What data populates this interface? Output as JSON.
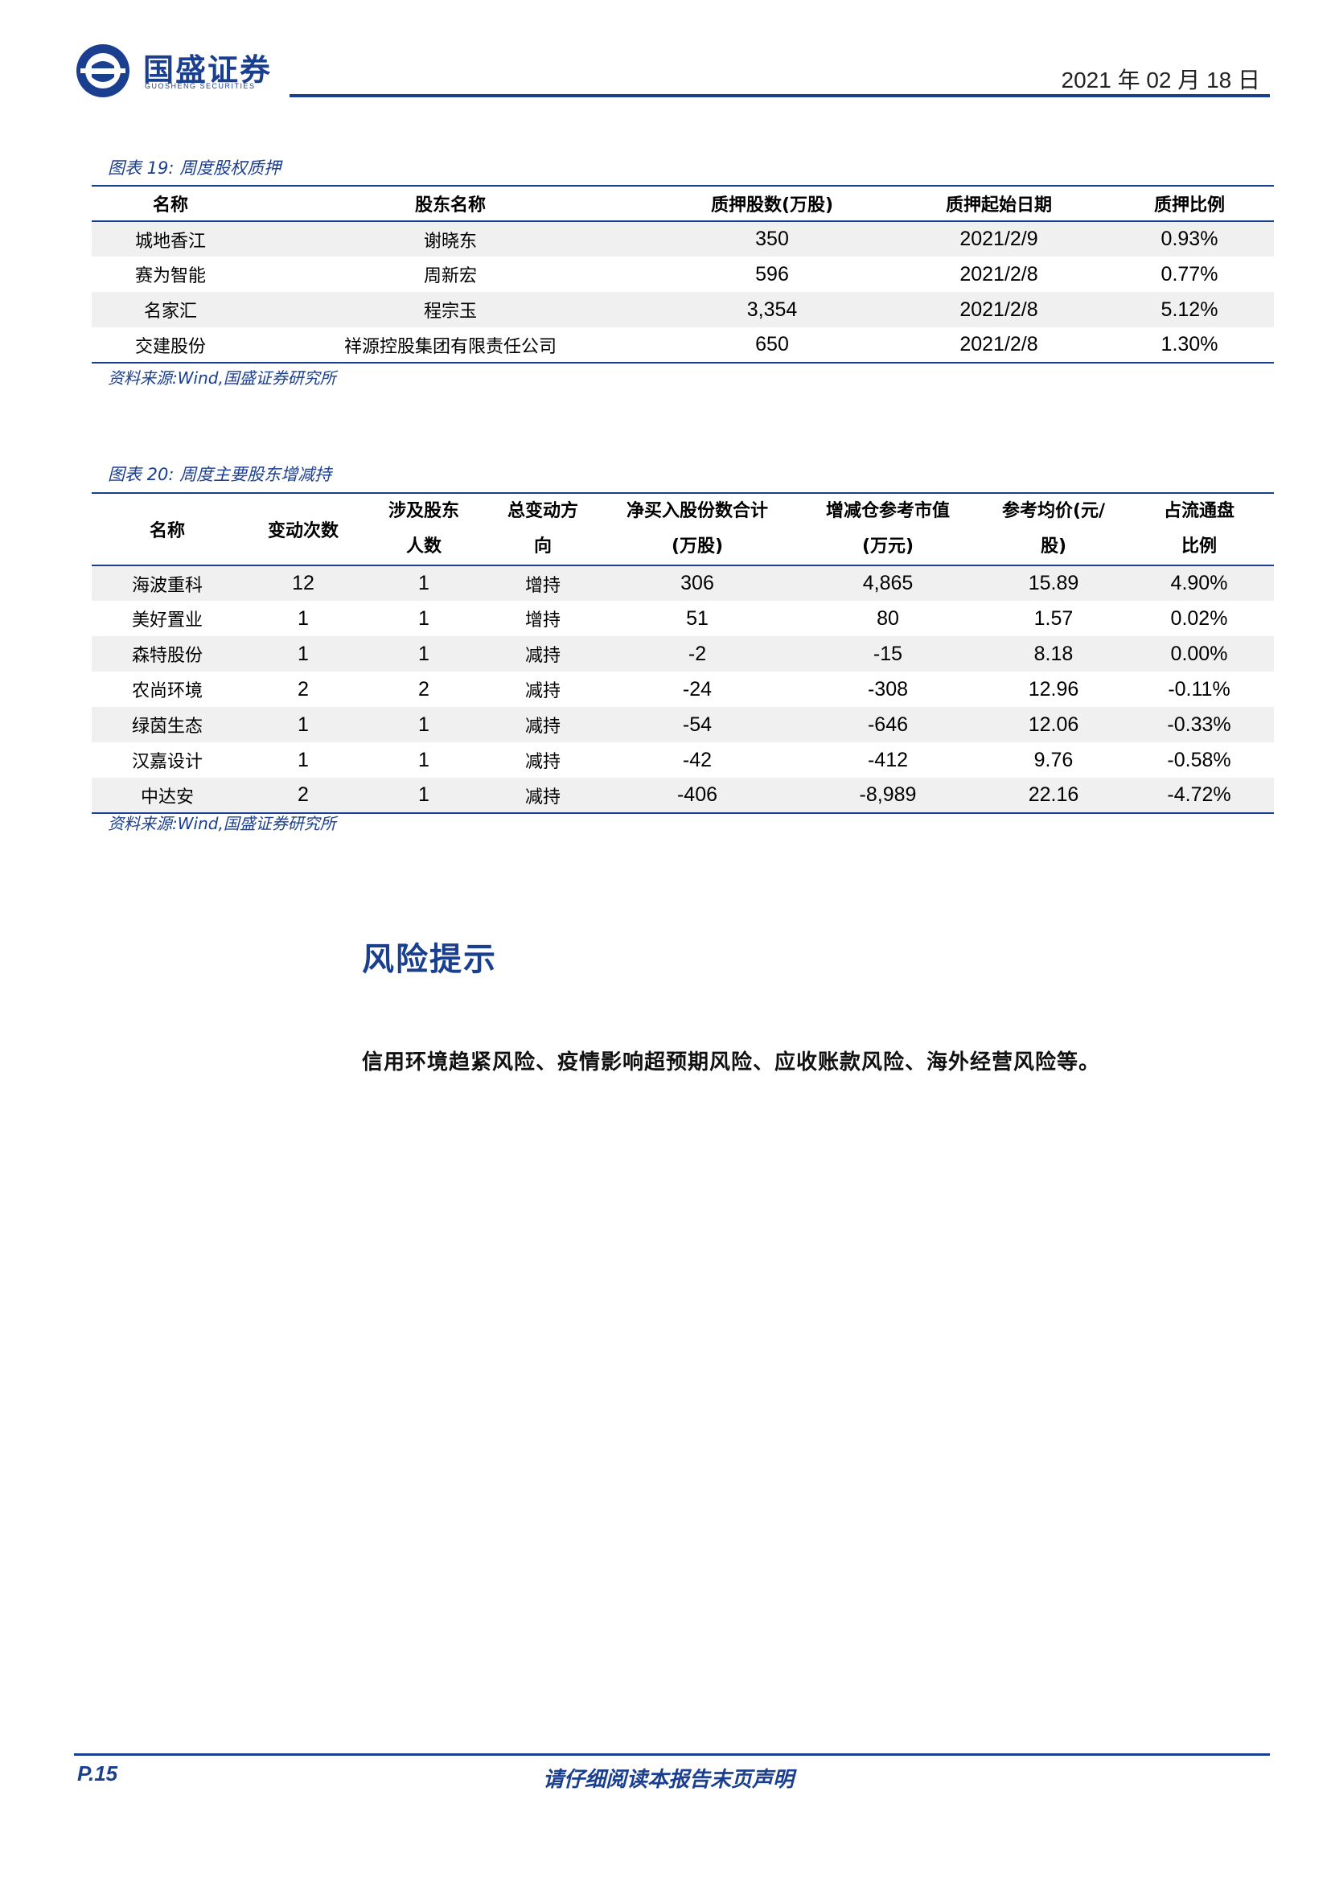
{
  "header": {
    "brand_cn": "国盛证券",
    "brand_en": "GUOSHENG SECURITIES",
    "date": "2021 年 02 月 18 日",
    "brand_color": "#1b3f8f"
  },
  "table19": {
    "caption": "图表 19:  周度股权质押",
    "headers": [
      "名称",
      "股东名称",
      "质押股数(万股)",
      "质押起始日期",
      "质押比例"
    ],
    "rows": [
      [
        "城地香江",
        "谢晓东",
        "350",
        "2021/2/9",
        "0.93%"
      ],
      [
        "赛为智能",
        "周新宏",
        "596",
        "2021/2/8",
        "0.77%"
      ],
      [
        "名家汇",
        "程宗玉",
        "3,354",
        "2021/2/8",
        "5.12%"
      ],
      [
        "交建股份",
        "祥源控股集团有限责任公司",
        "650",
        "2021/2/8",
        "1.30%"
      ]
    ],
    "source": "资料来源:Wind,国盛证券研究所"
  },
  "table20": {
    "caption": "图表 20:  周度主要股东增减持",
    "headers": [
      [
        "名称"
      ],
      [
        "变动次数"
      ],
      [
        "涉及股东",
        "人数"
      ],
      [
        "总变动方",
        "向"
      ],
      [
        "净买入股份数合计",
        "(万股)"
      ],
      [
        "增减仓参考市值",
        "(万元)"
      ],
      [
        "参考均价(元/",
        "股)"
      ],
      [
        "占流通盘",
        "比例"
      ]
    ],
    "rows": [
      [
        "海波重科",
        "12",
        "1",
        "增持",
        "306",
        "4,865",
        "15.89",
        "4.90%"
      ],
      [
        "美好置业",
        "1",
        "1",
        "增持",
        "51",
        "80",
        "1.57",
        "0.02%"
      ],
      [
        "森特股份",
        "1",
        "1",
        "减持",
        "-2",
        "-15",
        "8.18",
        "0.00%"
      ],
      [
        "农尚环境",
        "2",
        "2",
        "减持",
        "-24",
        "-308",
        "12.96",
        "-0.11%"
      ],
      [
        "绿茵生态",
        "1",
        "1",
        "减持",
        "-54",
        "-646",
        "12.06",
        "-0.33%"
      ],
      [
        "汉嘉设计",
        "1",
        "1",
        "减持",
        "-42",
        "-412",
        "9.76",
        "-0.58%"
      ],
      [
        "中达安",
        "2",
        "1",
        "减持",
        "-406",
        "-8,989",
        "22.16",
        "-4.72%"
      ]
    ],
    "source": "资料来源:Wind,国盛证券研究所"
  },
  "risk": {
    "title": "风险提示",
    "text": "信用环境趋紧风险、疫情影响超预期风险、应收账款风险、海外经营风险等。"
  },
  "footer": {
    "page": "P.15",
    "note": "请仔细阅读本报告末页声明"
  }
}
